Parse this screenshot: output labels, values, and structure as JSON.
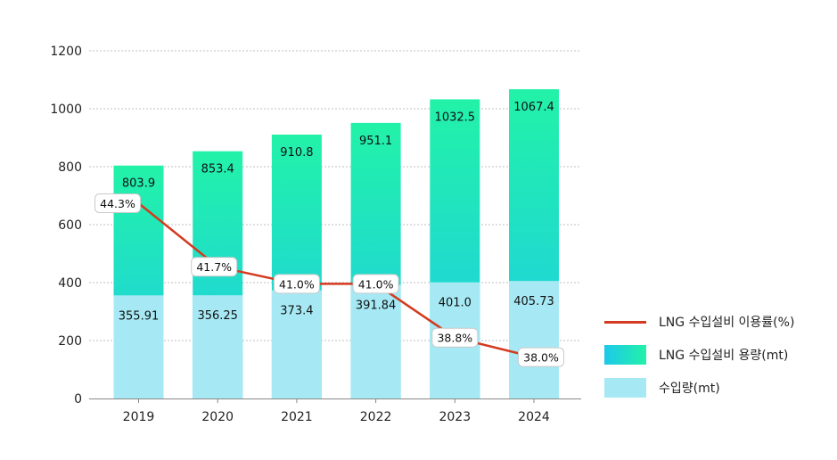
{
  "chart_data": {
    "type": "bar",
    "categories": [
      "2019",
      "2020",
      "2021",
      "2022",
      "2023",
      "2024"
    ],
    "series": [
      {
        "name": "수입량(mt)",
        "values": [
          355.91,
          356.25,
          373.4,
          391.84,
          401.0,
          405.73
        ],
        "labels": [
          "355.91",
          "356.25",
          "373.4",
          "391.84",
          "401.0",
          "405.73"
        ],
        "color": "#a6e9f5"
      },
      {
        "name": "LNG 수입설비 용량(mt)",
        "values": [
          803.9,
          853.4,
          910.8,
          951.1,
          1032.5,
          1067.4
        ],
        "labels": [
          "803.9",
          "853.4",
          "910.8",
          "951.1",
          "1032.5",
          "1067.4"
        ],
        "color_from": "#1ec8ea",
        "color_to": "#22f2a8"
      },
      {
        "name": "LNG 수입설비 이용률(%)",
        "type": "line",
        "values": [
          44.3,
          41.7,
          41.0,
          41.0,
          38.8,
          38.0
        ],
        "labels": [
          "44.3%",
          "41.7%",
          "41.0%",
          "41.0%",
          "38.8%",
          "38.0%"
        ],
        "color": "#d43a1f"
      }
    ],
    "y_ticks": [
      "0",
      "200",
      "400",
      "600",
      "800",
      "1000",
      "1200"
    ],
    "ylim": [
      0,
      1200
    ],
    "grid": true,
    "legend_position": "right"
  },
  "legend": {
    "line_label": "LNG 수입설비 이용률(%)",
    "capacity_label": "LNG 수입설비 용량(mt)",
    "import_label": "수입량(mt)"
  }
}
